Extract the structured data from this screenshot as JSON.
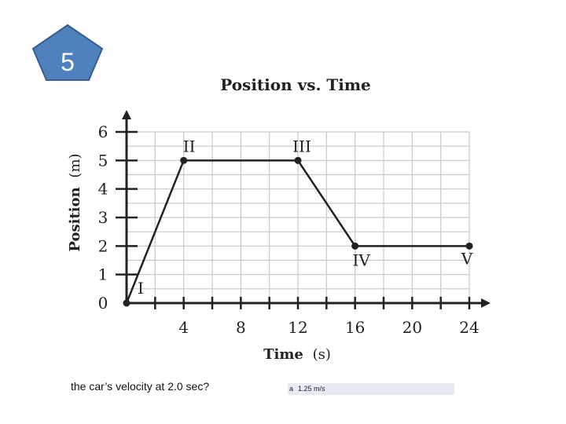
{
  "slide": {
    "number": "5",
    "question": "the car’s velocity at 2.0 sec?",
    "answer": {
      "letter": "a",
      "text": "1.25 m/s"
    },
    "badge_color": "#4f81bd"
  },
  "chart_data": {
    "type": "line",
    "title": "Position vs. Time",
    "xlabel": "Time",
    "xlabel_unit": "(s)",
    "ylabel": "Position",
    "ylabel_unit": "(m)",
    "xlim": [
      0,
      24
    ],
    "ylim": [
      0,
      6
    ],
    "xticks": [
      4,
      8,
      12,
      16,
      20,
      24
    ],
    "xtick_labels": [
      "4",
      "8",
      "12",
      "16",
      "20",
      "24"
    ],
    "yticks": [
      0,
      1,
      2,
      3,
      4,
      5,
      6
    ],
    "ytick_labels": [
      "0",
      "1",
      "2",
      "3",
      "4",
      "5",
      "6"
    ],
    "grid": true,
    "series": [
      {
        "x": [
          0,
          4,
          12,
          16,
          24
        ],
        "y": [
          0,
          5,
          5,
          2,
          2
        ]
      }
    ],
    "points": [
      {
        "label": "I",
        "x": 0,
        "y": 0
      },
      {
        "label": "II",
        "x": 4,
        "y": 5
      },
      {
        "label": "III",
        "x": 12,
        "y": 5
      },
      {
        "label": "IV",
        "x": 16,
        "y": 2
      },
      {
        "label": "V",
        "x": 24,
        "y": 2
      }
    ]
  }
}
